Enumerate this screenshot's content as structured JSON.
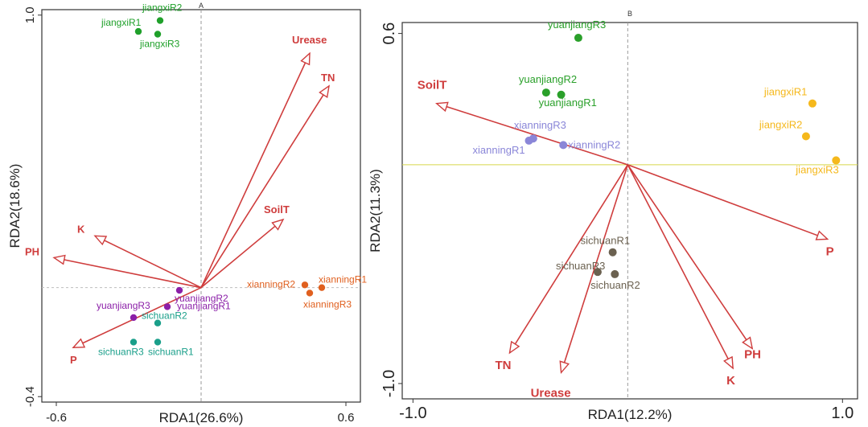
{
  "chart_data": [
    {
      "type": "scatter",
      "panel_label": "A",
      "xlabel": "RDA1(26.6%)",
      "ylabel": "RDA2(18.6%)",
      "xlim": [
        -0.66,
        0.66
      ],
      "ylim": [
        -0.42,
        1.02
      ],
      "xticks": [
        -0.6,
        0.6
      ],
      "yticks": [
        1.0,
        -0.4
      ],
      "zero_lines": true,
      "points": [
        {
          "label": "jiangxiR1",
          "x": -0.26,
          "y": 0.94,
          "color": "#1fa02a"
        },
        {
          "label": "jiangxiR2",
          "x": -0.17,
          "y": 0.98,
          "color": "#1fa02a"
        },
        {
          "label": "jiangxiR3",
          "x": -0.18,
          "y": 0.93,
          "color": "#1fa02a"
        },
        {
          "label": "yuanjiangR1",
          "x": -0.14,
          "y": -0.07,
          "color": "#8b1fa8"
        },
        {
          "label": "yuanjiangR2",
          "x": -0.09,
          "y": -0.01,
          "color": "#8b1fa8"
        },
        {
          "label": "yuanjiangR3",
          "x": -0.28,
          "y": -0.11,
          "color": "#8b1fa8"
        },
        {
          "label": "sichuanR1",
          "x": -0.18,
          "y": -0.2,
          "color": "#1a9f8a"
        },
        {
          "label": "sichuanR2",
          "x": -0.18,
          "y": -0.13,
          "color": "#1a9f8a"
        },
        {
          "label": "sichuanR3",
          "x": -0.28,
          "y": -0.2,
          "color": "#1a9f8a"
        },
        {
          "label": "xianningR1",
          "x": 0.5,
          "y": 0.0,
          "color": "#e0601f"
        },
        {
          "label": "xianningR2",
          "x": 0.43,
          "y": 0.01,
          "color": "#e0601f"
        },
        {
          "label": "xianningR3",
          "x": 0.45,
          "y": -0.02,
          "color": "#e0601f"
        }
      ],
      "vectors": [
        {
          "label": "Urease",
          "x": 0.45,
          "y": 0.86
        },
        {
          "label": "TN",
          "x": 0.53,
          "y": 0.74
        },
        {
          "label": "SoilT",
          "x": 0.34,
          "y": 0.25
        },
        {
          "label": "K",
          "x": -0.44,
          "y": 0.19
        },
        {
          "label": "PH",
          "x": -0.61,
          "y": 0.11
        },
        {
          "label": "P",
          "x": -0.53,
          "y": -0.22
        }
      ]
    },
    {
      "type": "scatter",
      "panel_label": "B",
      "xlabel": "RDA1(12.2%)",
      "ylabel": "RDA2(11.3%)",
      "xlim": [
        -1.05,
        1.07
      ],
      "ylim": [
        -1.07,
        0.65
      ],
      "xticks": [
        -1.0,
        1.0
      ],
      "yticks": [
        0.6,
        -1.0
      ],
      "zero_lines": true,
      "points": [
        {
          "label": "yuanjiangR1",
          "x": -0.31,
          "y": 0.32,
          "color": "#2aa02a"
        },
        {
          "label": "yuanjiangR2",
          "x": -0.38,
          "y": 0.33,
          "color": "#2aa02a"
        },
        {
          "label": "yuanjiangR3",
          "x": -0.23,
          "y": 0.58,
          "color": "#2aa02a"
        },
        {
          "label": "xianningR1",
          "x": -0.46,
          "y": 0.11,
          "color": "#8a86d8"
        },
        {
          "label": "xianningR2",
          "x": -0.3,
          "y": 0.09,
          "color": "#8a86d8"
        },
        {
          "label": "xianningR3",
          "x": -0.44,
          "y": 0.12,
          "color": "#8a86d8"
        },
        {
          "label": "jiangxiR1",
          "x": 0.86,
          "y": 0.28,
          "color": "#f5b81c"
        },
        {
          "label": "jiangxiR2",
          "x": 0.83,
          "y": 0.13,
          "color": "#f5b81c"
        },
        {
          "label": "jiangxiR3",
          "x": 0.97,
          "y": 0.02,
          "color": "#f5b81c"
        },
        {
          "label": "sichuanR1",
          "x": -0.07,
          "y": -0.4,
          "color": "#6b6150"
        },
        {
          "label": "sichuanR2",
          "x": -0.06,
          "y": -0.5,
          "color": "#6b6150"
        },
        {
          "label": "sichuanR3",
          "x": -0.14,
          "y": -0.49,
          "color": "#6b6150"
        }
      ],
      "vectors": [
        {
          "label": "SoilT",
          "x": -0.89,
          "y": 0.28
        },
        {
          "label": "P",
          "x": 0.93,
          "y": -0.34
        },
        {
          "label": "PH",
          "x": 0.58,
          "y": -0.84
        },
        {
          "label": "K",
          "x": 0.49,
          "y": -0.93
        },
        {
          "label": "TN",
          "x": -0.55,
          "y": -0.86
        },
        {
          "label": "Urease",
          "x": -0.31,
          "y": -0.95
        }
      ]
    }
  ]
}
